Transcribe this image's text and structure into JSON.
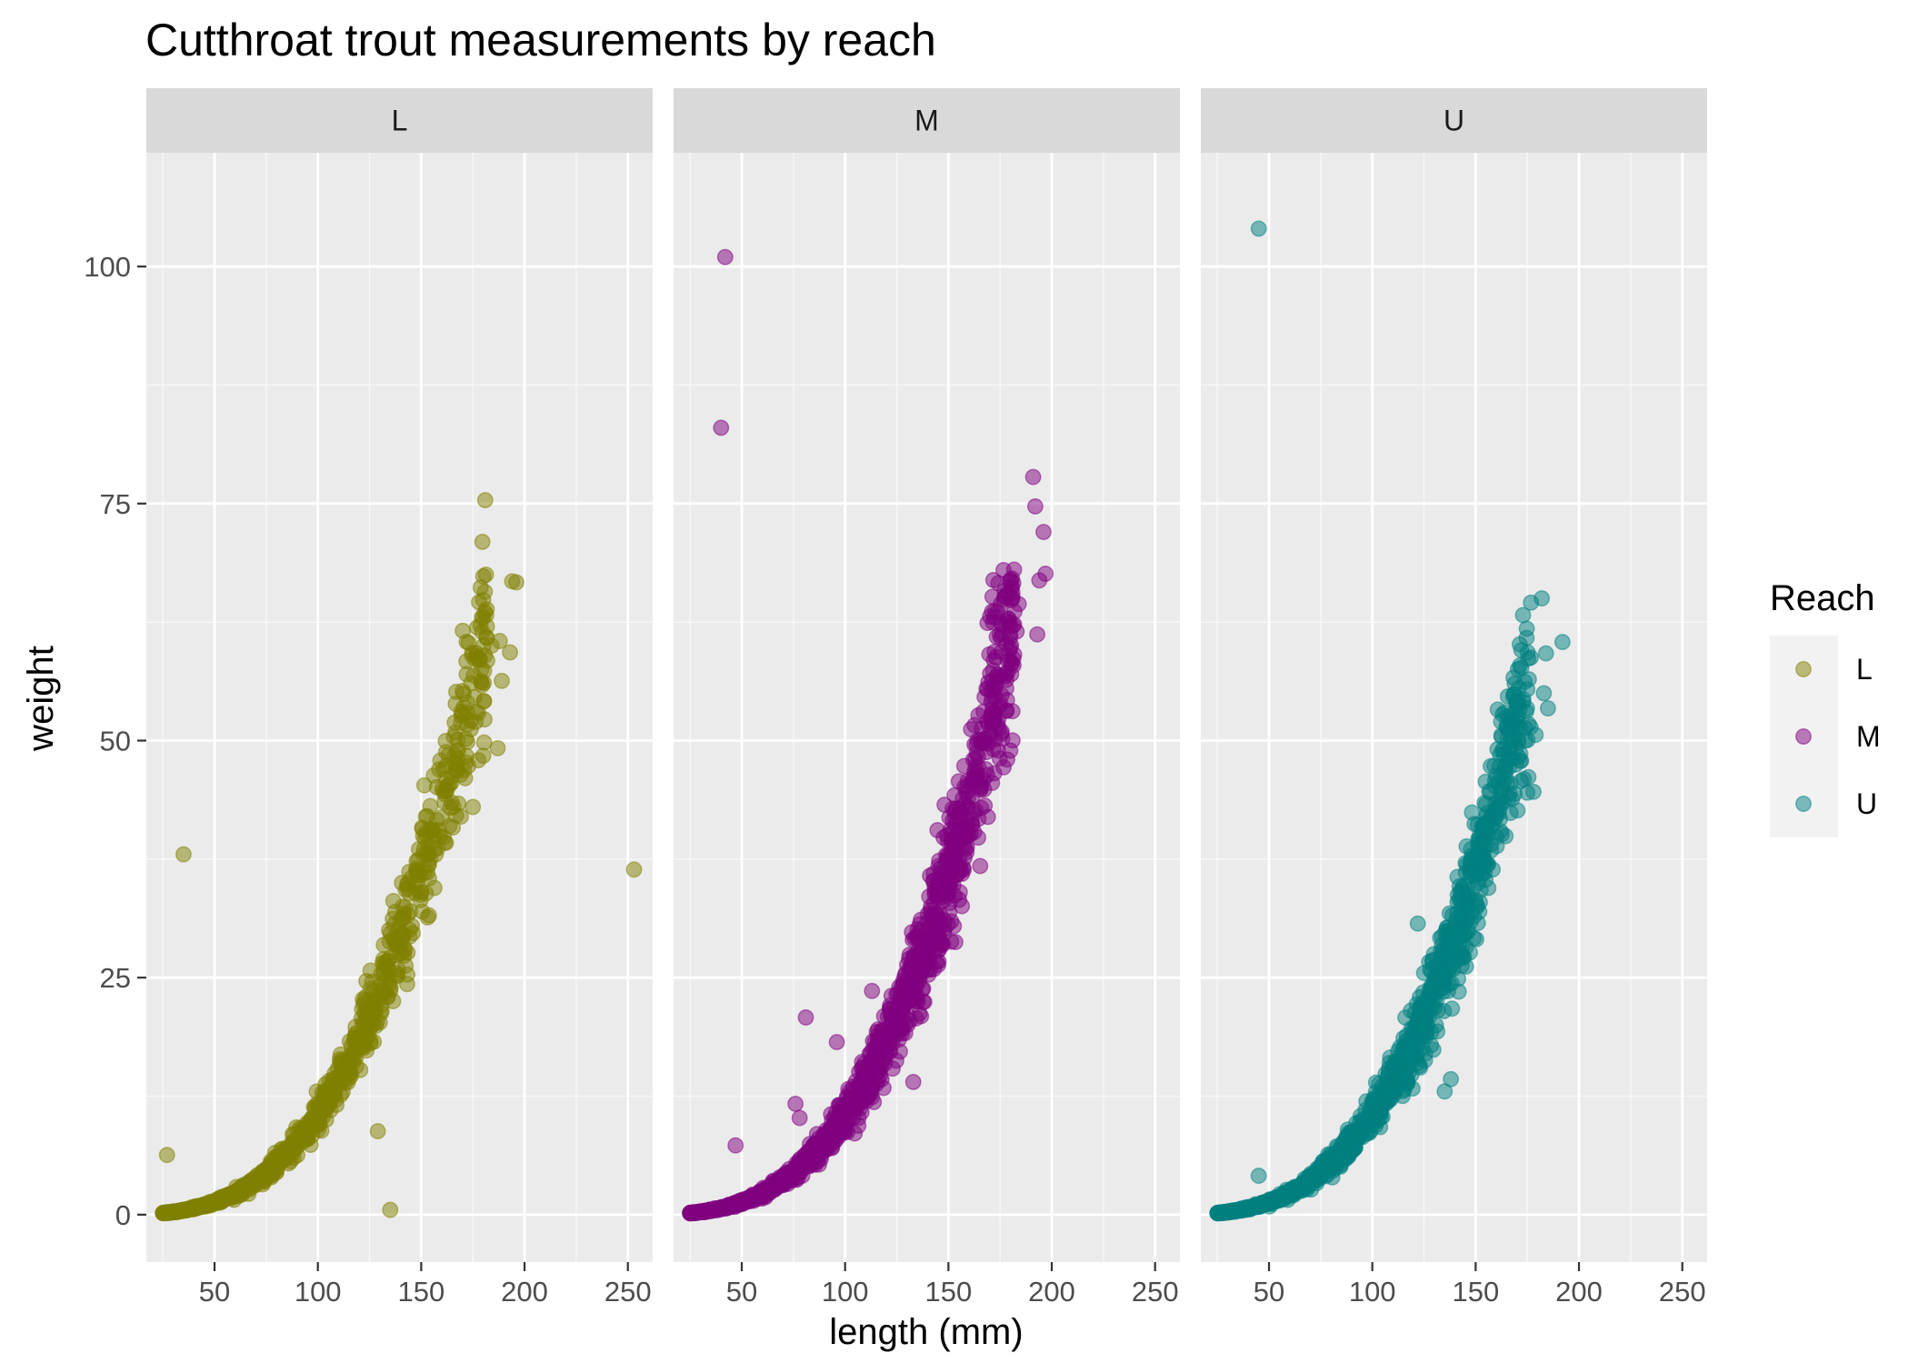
{
  "chart_data": {
    "type": "scatter",
    "title": "Cutthroat trout measurements by reach",
    "xlabel": "length (mm)",
    "ylabel": "weight",
    "facet_by": "Reach",
    "facets": [
      "L",
      "M",
      "U"
    ],
    "xlim": [
      17,
      262
    ],
    "ylim": [
      -5,
      112
    ],
    "x_ticks": [
      50,
      100,
      150,
      200,
      250
    ],
    "y_ticks": [
      0,
      25,
      50,
      75,
      100
    ],
    "grid": true,
    "point_alpha": 0.5,
    "legend": {
      "title": "Reach",
      "position": "right",
      "entries": [
        "L",
        "M",
        "U"
      ]
    },
    "colors": {
      "L": "#808000",
      "M": "#800080",
      "U": "#008080"
    },
    "relationship": {
      "form": "power",
      "coefficient": 1.06e-05,
      "exponent": 3.0
    },
    "series": [
      {
        "name": "L",
        "facet": "L",
        "x_range": [
          25,
          197
        ],
        "n": 900,
        "outliers": [
          {
            "x": 27,
            "y": 6.3
          },
          {
            "x": 35,
            "y": 38
          },
          {
            "x": 129,
            "y": 8.8
          },
          {
            "x": 135,
            "y": 0.5
          },
          {
            "x": 253,
            "y": 36.4
          },
          {
            "x": 194,
            "y": 66.8
          },
          {
            "x": 196,
            "y": 66.7
          },
          {
            "x": 178,
            "y": 64.6
          },
          {
            "x": 180,
            "y": 63
          },
          {
            "x": 184,
            "y": 60
          },
          {
            "x": 188,
            "y": 60.5
          },
          {
            "x": 193,
            "y": 59.3
          },
          {
            "x": 189,
            "y": 56.3
          },
          {
            "x": 172,
            "y": 57
          },
          {
            "x": 187,
            "y": 49.2
          },
          {
            "x": 175,
            "y": 43
          },
          {
            "x": 180,
            "y": 48.4
          },
          {
            "x": 174,
            "y": 51.2
          }
        ]
      },
      {
        "name": "M",
        "facet": "M",
        "x_range": [
          25,
          197
        ],
        "n": 1400,
        "outliers": [
          {
            "x": 42,
            "y": 101
          },
          {
            "x": 40,
            "y": 83
          },
          {
            "x": 47,
            "y": 7.3
          },
          {
            "x": 81,
            "y": 20.8
          },
          {
            "x": 76,
            "y": 11.7
          },
          {
            "x": 78,
            "y": 10.2
          },
          {
            "x": 96,
            "y": 18.2
          },
          {
            "x": 113,
            "y": 23.6
          },
          {
            "x": 133,
            "y": 14
          },
          {
            "x": 191,
            "y": 77.8
          },
          {
            "x": 192,
            "y": 74.7
          },
          {
            "x": 196,
            "y": 72
          },
          {
            "x": 197,
            "y": 67.6
          },
          {
            "x": 194,
            "y": 66.9
          },
          {
            "x": 181,
            "y": 65.6
          },
          {
            "x": 184,
            "y": 64.4
          },
          {
            "x": 176,
            "y": 62.2
          },
          {
            "x": 183,
            "y": 61.5
          },
          {
            "x": 193,
            "y": 61.2
          },
          {
            "x": 180,
            "y": 59.8
          },
          {
            "x": 178,
            "y": 55.5
          },
          {
            "x": 181,
            "y": 53.1
          },
          {
            "x": 162,
            "y": 48
          }
        ]
      },
      {
        "name": "U",
        "facet": "U",
        "x_range": [
          25,
          192
        ],
        "n": 1300,
        "outliers": [
          {
            "x": 45,
            "y": 104
          },
          {
            "x": 45,
            "y": 4.1
          },
          {
            "x": 138,
            "y": 14.3
          },
          {
            "x": 135,
            "y": 13
          },
          {
            "x": 122,
            "y": 30.7
          },
          {
            "x": 182,
            "y": 65
          },
          {
            "x": 192,
            "y": 60.4
          },
          {
            "x": 184,
            "y": 59.2
          },
          {
            "x": 175,
            "y": 55.4
          },
          {
            "x": 183,
            "y": 55
          },
          {
            "x": 185,
            "y": 53.4
          },
          {
            "x": 175,
            "y": 44.5
          },
          {
            "x": 178,
            "y": 44.6
          },
          {
            "x": 163,
            "y": 49
          },
          {
            "x": 174,
            "y": 50
          },
          {
            "x": 179,
            "y": 50.6
          }
        ]
      }
    ]
  }
}
